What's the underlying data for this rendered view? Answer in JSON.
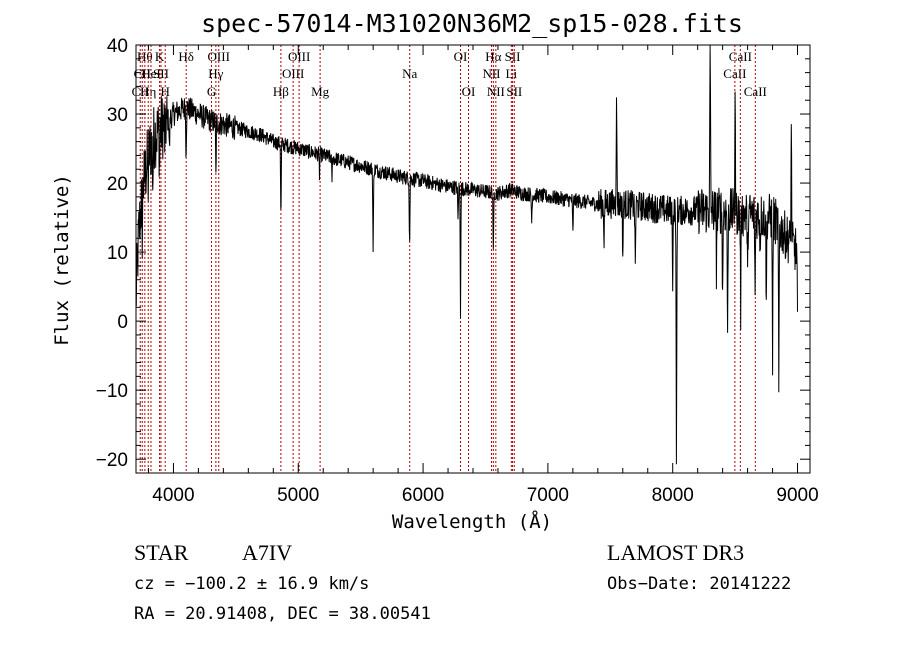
{
  "chart_data": {
    "type": "line",
    "title": "spec-57014-M31020N36M2_sp15-028.fits",
    "xlabel": "Wavelength (Å)",
    "ylabel": "Flux (relative)",
    "xlim": [
      3700,
      9100
    ],
    "ylim": [
      -22,
      40
    ],
    "x_ticks": [
      4000,
      5000,
      6000,
      7000,
      8000,
      9000
    ],
    "y_ticks": [
      -20,
      -10,
      0,
      10,
      20,
      30,
      40
    ],
    "continuum": [
      [
        3700,
        3
      ],
      [
        3720,
        12
      ],
      [
        3750,
        19
      ],
      [
        3800,
        24
      ],
      [
        3850,
        27
      ],
      [
        3900,
        28
      ],
      [
        3950,
        29
      ],
      [
        4000,
        30
      ],
      [
        4100,
        31
      ],
      [
        4200,
        30
      ],
      [
        4300,
        29
      ],
      [
        4400,
        28.5
      ],
      [
        4500,
        28
      ],
      [
        4600,
        27.5
      ],
      [
        4700,
        27
      ],
      [
        4800,
        26
      ],
      [
        4900,
        25.5
      ],
      [
        5000,
        25
      ],
      [
        5200,
        24
      ],
      [
        5400,
        23
      ],
      [
        5600,
        22
      ],
      [
        5800,
        21
      ],
      [
        6000,
        20.3
      ],
      [
        6200,
        19.5
      ],
      [
        6400,
        19
      ],
      [
        6600,
        18.5
      ],
      [
        6700,
        19
      ],
      [
        6800,
        18.5
      ],
      [
        7000,
        18
      ],
      [
        7200,
        17.5
      ],
      [
        7400,
        17
      ],
      [
        7600,
        17
      ],
      [
        7800,
        16.5
      ],
      [
        8000,
        16
      ],
      [
        8200,
        16
      ],
      [
        8400,
        16
      ],
      [
        8600,
        15.5
      ],
      [
        8800,
        15
      ],
      [
        9000,
        10
      ]
    ],
    "features": [
      [
        3750,
        -6
      ],
      [
        3797,
        -4
      ],
      [
        3835,
        -6
      ],
      [
        3889,
        -6
      ],
      [
        3933,
        -4
      ],
      [
        3968,
        -5
      ],
      [
        4101,
        -7
      ],
      [
        4340,
        -8
      ],
      [
        4861,
        -12
      ],
      [
        5170,
        -3
      ],
      [
        5270,
        -3
      ],
      [
        5600,
        -12
      ],
      [
        5892,
        -10
      ],
      [
        6280,
        -5
      ],
      [
        6300,
        -18
      ],
      [
        6563,
        -10
      ],
      [
        6870,
        -4
      ],
      [
        7200,
        -5
      ],
      [
        7450,
        -5
      ],
      [
        7550,
        17
      ],
      [
        7600,
        -8
      ],
      [
        7700,
        -9
      ],
      [
        8000,
        -10
      ],
      [
        8030,
        -37
      ],
      [
        8300,
        25
      ],
      [
        8350,
        -8
      ],
      [
        8400,
        -13
      ],
      [
        8440,
        -20
      ],
      [
        8500,
        17
      ],
      [
        8545,
        -14
      ],
      [
        8600,
        -10
      ],
      [
        8660,
        -12
      ],
      [
        8700,
        -5
      ],
      [
        8750,
        -14
      ],
      [
        8800,
        -20
      ],
      [
        8850,
        -25
      ],
      [
        8950,
        18
      ],
      [
        9000,
        -10
      ]
    ],
    "lines": [
      {
        "wl": 3734,
        "label": "CII",
        "row": 3
      },
      {
        "wl": 3750,
        "label": "CII",
        "row": 2
      },
      {
        "wl": 3771,
        "label": "Hθ",
        "row": 1
      },
      {
        "wl": 3798,
        "label": "Hη",
        "row": 3
      },
      {
        "wl": 3820,
        "label": "HeI",
        "row": 2
      },
      {
        "wl": 3889,
        "label": "K",
        "row": 1
      },
      {
        "wl": 3900,
        "label": "SII",
        "row": 2
      },
      {
        "wl": 3934,
        "label": "H",
        "row": 3
      },
      {
        "wl": 4102,
        "label": "Hδ",
        "row": 1
      },
      {
        "wl": 4305,
        "label": "G",
        "row": 3
      },
      {
        "wl": 4340,
        "label": "Hγ",
        "row": 2
      },
      {
        "wl": 4363,
        "label": "OIII",
        "row": 1
      },
      {
        "wl": 4861,
        "label": "Hβ",
        "row": 3
      },
      {
        "wl": 4959,
        "label": "OIII",
        "row": 2
      },
      {
        "wl": 5007,
        "label": "OIII",
        "row": 1
      },
      {
        "wl": 5175,
        "label": "Mg",
        "row": 3
      },
      {
        "wl": 5893,
        "label": "Na",
        "row": 2
      },
      {
        "wl": 6300,
        "label": "OI",
        "row": 1
      },
      {
        "wl": 6364,
        "label": "OI",
        "row": 3
      },
      {
        "wl": 6548,
        "label": "NII",
        "row": 2
      },
      {
        "wl": 6563,
        "label": "Hα",
        "row": 1
      },
      {
        "wl": 6583,
        "label": "NII",
        "row": 3
      },
      {
        "wl": 6707,
        "label": "Li",
        "row": 2
      },
      {
        "wl": 6717,
        "label": "SII",
        "row": 1
      },
      {
        "wl": 6731,
        "label": "SII",
        "row": 3
      },
      {
        "wl": 8498,
        "label": "CaII",
        "row": 2
      },
      {
        "wl": 8542,
        "label": "CaII",
        "row": 1
      },
      {
        "wl": 8662,
        "label": "CaII",
        "row": 3
      }
    ]
  },
  "info": {
    "object_class": "STAR",
    "subclass": "A7IV",
    "survey": "LAMOST DR3",
    "cz": "cz = −100.2 ± 16.9 km/s",
    "obs_date": "Obs−Date: 20141222",
    "coords": "RA =  20.91408, DEC =  38.00541"
  }
}
